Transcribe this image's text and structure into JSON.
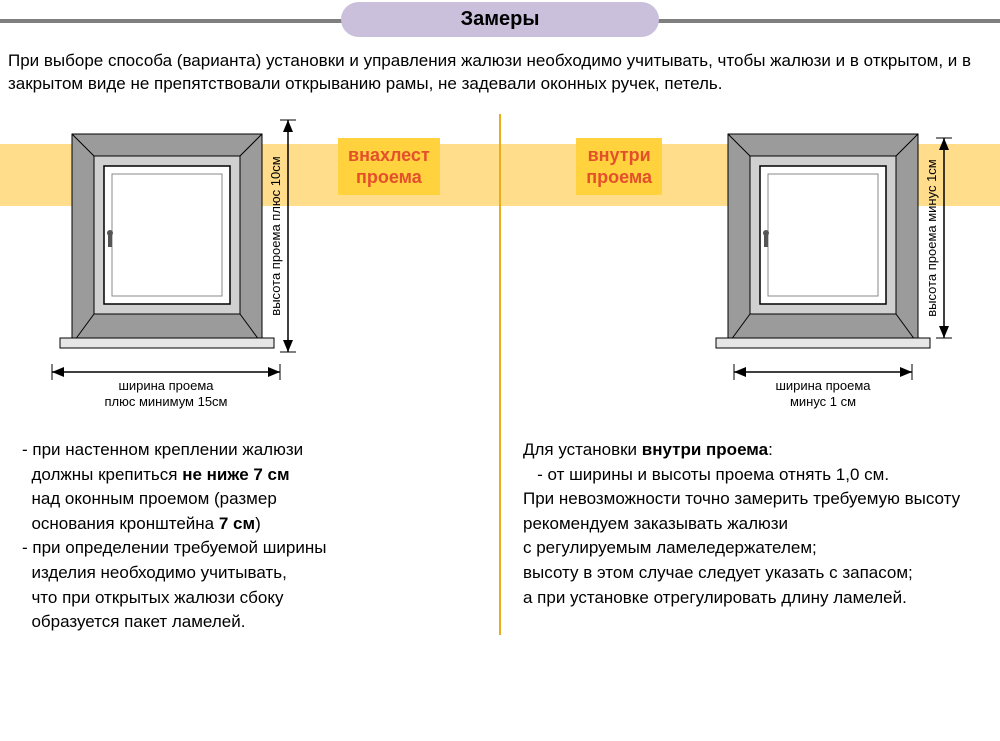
{
  "title": "Замеры",
  "intro": "При выборе способа (варианта)  установки и управления  жалюзи необходимо учитывать, чтобы  жалюзи и в открытом, и в закрытом виде не препятствовали  открыванию  рамы, не задевали оконных ручек, петель.",
  "band_color": "#ffdd8a",
  "divider_color": "#e9ad1e",
  "tag_bg": "#ffd23e",
  "tag_color": "#e4502b",
  "left": {
    "tag": "внахлест\nпроема",
    "v_label": "высота проема плюс 10см",
    "h_label_1": "ширина проема",
    "h_label_2": "плюс минимум 15см",
    "desc_html": "- при настенном креплении жалюзи<br>&nbsp;&nbsp;должны крепиться <b>не ниже 7 см</b><br>&nbsp;&nbsp;над оконным  проемом (размер<br>&nbsp;&nbsp;основания кронштейна <b>7 см</b>)<br>- при определении требуемой ширины<br>&nbsp;&nbsp;изделия необходимо учитывать,<br>&nbsp;&nbsp;что при открытых жалюзи сбоку<br>&nbsp;&nbsp;образуется  пакет ламелей."
  },
  "right": {
    "tag": "внутри\nпроема",
    "v_label": "высота проема минус 1см",
    "h_label_1": "ширина проема",
    "h_label_2": "минус 1 см",
    "desc_html": "Для установки <b>внутри проема</b>:<br>&nbsp;&nbsp;&nbsp;- от  ширины  и  высоты  проема  отнять 1,0 см.<br>При  невозможности точно замерить требуемую высоту рекомендуем заказывать жалюзи<br>с регулируемым  ламеледержателем;<br>высоту в этом случае следует указать с запасом;<br>а при установке отрегулировать  длину ламелей."
  },
  "win_colors": {
    "outer": "#9b9b9b",
    "inner_frame": "#d0d0d0",
    "glass": "#ffffff",
    "stroke": "#000000",
    "sill": "#e6e6e6"
  }
}
